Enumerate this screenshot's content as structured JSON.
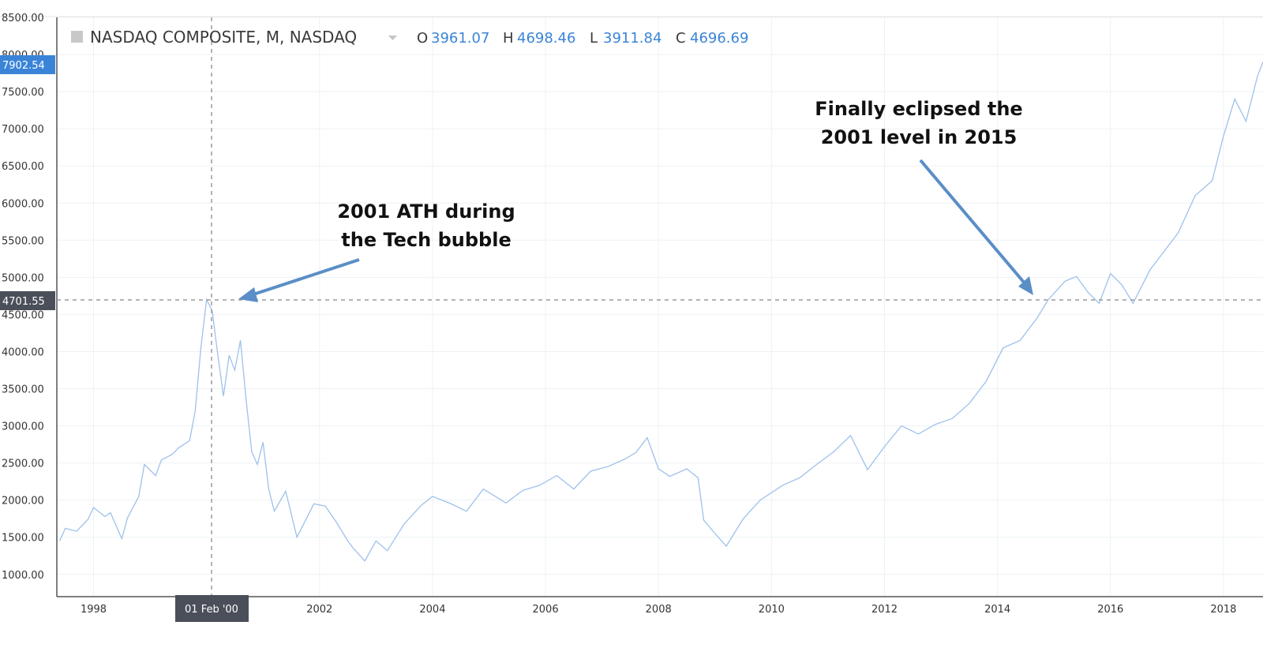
{
  "header": {
    "symbol": "NASDAQ COMPOSITE, M, NASDAQ",
    "open_label": "O",
    "open": "3961.07",
    "high_label": "H",
    "high": "4698.46",
    "low_label": "L",
    "low": "3911.84",
    "close_label": "C",
    "close": "4696.69"
  },
  "crosshair": {
    "x_label": "01 Feb '00",
    "y_label": "4701.55"
  },
  "last_price_label": "7902.54",
  "annotations": {
    "ath_line1": "2001 ATH during",
    "ath_line2": "the Tech bubble",
    "eclipse_line1": "Finally eclipsed the",
    "eclipse_line2": "2001 level in 2015"
  },
  "colors": {
    "line": "#9ec1ea",
    "accent": "#3a84d8",
    "arrow": "#5b8ec7",
    "crosshair_flag": "#4a4f5a"
  },
  "chart_data": {
    "type": "line",
    "title": "NASDAQ COMPOSITE, M, NASDAQ",
    "xlabel": "",
    "ylabel": "",
    "xlim": [
      1997.35,
      2018.7
    ],
    "ylim": [
      700,
      8500
    ],
    "x_ticks": [
      "1998",
      "2002",
      "2004",
      "2006",
      "2008",
      "2010",
      "2012",
      "2014",
      "2016",
      "2018"
    ],
    "y_ticks": [
      "1000.00",
      "1500.00",
      "2000.00",
      "2500.00",
      "3000.00",
      "3500.00",
      "4000.00",
      "4500.00",
      "5000.00",
      "5500.00",
      "6000.00",
      "6500.00",
      "7000.00",
      "7500.00",
      "8000.00",
      "8500.00"
    ],
    "grid": true,
    "series": [
      {
        "x": [
          1997.4,
          1997.5,
          1997.7,
          1997.9,
          1998.0,
          1998.2,
          1998.3,
          1998.5,
          1998.6,
          1998.8,
          1998.9,
          1999.1,
          1999.2,
          1999.4,
          1999.5,
          1999.7,
          1999.8,
          1999.9,
          2000.0,
          2000.1,
          2000.2,
          2000.3,
          2000.4,
          2000.5,
          2000.6,
          2000.7,
          2000.8,
          2000.9,
          2001.0,
          2001.1,
          2001.2,
          2001.4,
          2001.6,
          2001.9,
          2002.1,
          2002.3,
          2002.5,
          2002.6,
          2002.8,
          2003.0,
          2003.2,
          2003.5,
          2003.8,
          2004.0,
          2004.3,
          2004.6,
          2004.9,
          2005.3,
          2005.6,
          2005.9,
          2006.2,
          2006.5,
          2006.8,
          2007.1,
          2007.4,
          2007.6,
          2007.8,
          2008.0,
          2008.2,
          2008.5,
          2008.7,
          2008.8,
          2009.0,
          2009.2,
          2009.5,
          2009.8,
          2010.2,
          2010.5,
          2010.8,
          2011.1,
          2011.4,
          2011.7,
          2012.0,
          2012.3,
          2012.6,
          2012.9,
          2013.2,
          2013.5,
          2013.8,
          2014.1,
          2014.4,
          2014.7,
          2014.9,
          2015.2,
          2015.4,
          2015.6,
          2015.8,
          2016.0,
          2016.2,
          2016.4,
          2016.7,
          2016.9,
          2017.2,
          2017.5,
          2017.8,
          2018.0,
          2018.2,
          2018.4,
          2018.6,
          2018.7
        ],
        "y": [
          1450,
          1620,
          1580,
          1740,
          1900,
          1780,
          1830,
          1480,
          1760,
          2050,
          2480,
          2330,
          2540,
          2620,
          2700,
          2800,
          3200,
          4050,
          4700,
          4550,
          3950,
          3400,
          3950,
          3750,
          4150,
          3350,
          2650,
          2480,
          2780,
          2150,
          1850,
          2120,
          1500,
          1950,
          1920,
          1700,
          1450,
          1350,
          1180,
          1450,
          1320,
          1680,
          1930,
          2050,
          1960,
          1850,
          2150,
          1960,
          2130,
          2200,
          2330,
          2150,
          2390,
          2450,
          2550,
          2640,
          2840,
          2420,
          2320,
          2420,
          2300,
          1730,
          1550,
          1380,
          1750,
          2000,
          2200,
          2300,
          2480,
          2650,
          2870,
          2410,
          2720,
          3000,
          2890,
          3020,
          3100,
          3300,
          3600,
          4050,
          4150,
          4450,
          4700,
          4950,
          5010,
          4800,
          4650,
          5050,
          4900,
          4650,
          5100,
          5300,
          5600,
          6100,
          6300,
          6900,
          7400,
          7100,
          7700,
          7902
        ]
      }
    ]
  }
}
